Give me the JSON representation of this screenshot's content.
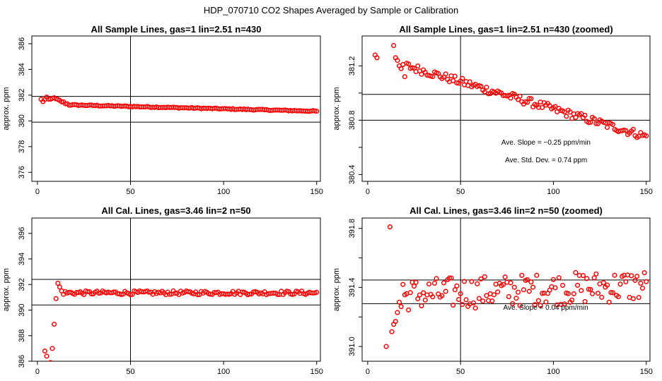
{
  "figure_title": "HDP_070710  CO2 Shapes Averaged by Sample or Calibration",
  "chart_data": [
    {
      "id": "p1",
      "type": "scatter",
      "title": "All Sample Lines, gas=1 lin=2.51 n=430",
      "xlabel": "",
      "ylabel": "approx. ppm",
      "xlim": [
        -3,
        152
      ],
      "ylim": [
        375.3,
        386.6
      ],
      "xticks": [
        0,
        50,
        100,
        150
      ],
      "xtick_labels": [
        "0",
        "50",
        "100",
        "150"
      ],
      "yticks": [
        376,
        378,
        380,
        382,
        384,
        386
      ],
      "ytick_labels": [
        "376",
        "378",
        "380",
        "382",
        "384",
        "386"
      ],
      "hlines": [
        381.9,
        379.9
      ],
      "vlines": [
        50
      ],
      "annotations": [],
      "series": [
        {
          "name": "sample",
          "color": "#ff0000",
          "x": [],
          "y": [],
          "generator": {
            "kind": "sample_full",
            "x_start": 2,
            "x_end": 150,
            "y_start": 381.3,
            "y_end": 380.75
          }
        }
      ]
    },
    {
      "id": "p2",
      "type": "scatter",
      "title": "All Sample Lines, gas=1 lin=2.51 n=430 (zoomed)",
      "xlabel": "",
      "ylabel": "approx. ppm",
      "xlim": [
        -3,
        152
      ],
      "ylim": [
        380.35,
        381.42
      ],
      "xticks": [
        0,
        50,
        100,
        150
      ],
      "xtick_labels": [
        "0",
        "50",
        "100",
        "150"
      ],
      "yticks": [
        380.4,
        380.6,
        380.8,
        381.0,
        381.2
      ],
      "ytick_labels": [
        "380.4",
        "",
        "380.8",
        "",
        "381.2"
      ],
      "hlines": [
        380.99,
        380.8
      ],
      "vlines": [
        50
      ],
      "annotations": [
        {
          "name": "slope-annotation",
          "text": "Ave. Slope =  −0.25  ppm/min",
          "x": 72,
          "y": 380.62
        },
        {
          "name": "stddev-annotation",
          "text": "Ave. Std. Dev. =  0.74  ppm",
          "x": 74,
          "y": 380.49
        }
      ],
      "series": [
        {
          "name": "sample-zoomed",
          "color": "#ff0000",
          "x": [],
          "y": [],
          "generator": {
            "kind": "sample_zoom",
            "x_start": 4,
            "x_end": 150,
            "y_start": 381.2,
            "y_end": 380.68
          }
        }
      ]
    },
    {
      "id": "p3",
      "type": "scatter",
      "title": "All Cal. Lines, gas=3.46 lin=2 n=50",
      "xlabel": "",
      "ylabel": "approx. ppm",
      "xlim": [
        -3,
        152
      ],
      "ylim": [
        386,
        397.2
      ],
      "xticks": [
        0,
        50,
        100,
        150
      ],
      "xtick_labels": [
        "0",
        "50",
        "100",
        "150"
      ],
      "yticks": [
        386,
        388,
        390,
        392,
        394,
        396
      ],
      "ytick_labels": [
        "386",
        "388",
        "390",
        "392",
        "394",
        "396"
      ],
      "hlines": [
        392.4,
        390.4
      ],
      "vlines": [
        50
      ],
      "annotations": [],
      "series": [
        {
          "name": "calibration",
          "color": "#ff0000",
          "x": [],
          "y": [],
          "generator": {
            "kind": "cal_full",
            "x_start": 4,
            "x_end": 150,
            "y_level": 391.35
          }
        }
      ]
    },
    {
      "id": "p4",
      "type": "scatter",
      "title": "All Cal. Lines, gas=3.46 lin=2 n=50 (zoomed)",
      "xlabel": "",
      "ylabel": "approx. ppm",
      "xlim": [
        -3,
        152
      ],
      "ylim": [
        390.9,
        391.87
      ],
      "xticks": [
        0,
        50,
        100,
        150
      ],
      "xtick_labels": [
        "0",
        "50",
        "100",
        "150"
      ],
      "yticks": [
        391.0,
        391.2,
        391.4,
        391.6,
        391.8
      ],
      "ytick_labels": [
        "391.0",
        "",
        "391.4",
        "",
        "391.8"
      ],
      "hlines": [
        391.45,
        391.29
      ],
      "vlines": [
        50
      ],
      "annotations": [
        {
          "name": "slope-annotation",
          "text": "Ave. Slope =  0.04  ppm/min",
          "x": 73,
          "y": 391.25
        }
      ],
      "series": [
        {
          "name": "calibration-zoomed",
          "color": "#ff0000",
          "x": [],
          "y": [],
          "generator": {
            "kind": "cal_zoom",
            "x_start": 10,
            "x_end": 150,
            "y_level": 391.38
          }
        }
      ]
    }
  ]
}
